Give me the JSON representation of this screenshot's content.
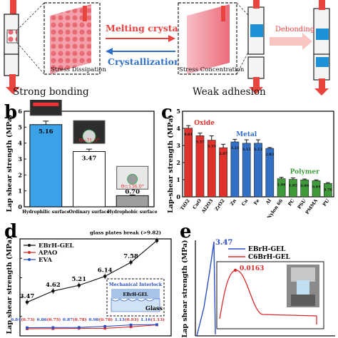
{
  "panel_a": {
    "arrow_top_label": "Melting crystal",
    "arrow_bottom_label": "Crystallization",
    "left_caption": "Stress Dissipation",
    "right_caption": "Stress Concentration",
    "right_arrow_label": "Debonding",
    "left_state": "Strong bonding",
    "right_state": "Weak adhesion",
    "colors": {
      "red_arrow": "#e8423f",
      "blue_arrow": "#2f6fc6",
      "cyan": "#1e90d8"
    }
  },
  "panel_b_letter": "b",
  "panel_c_letter": "c",
  "panel_d_letter": "d",
  "panel_e_letter": "e",
  "chart_data": [
    {
      "id": "b",
      "type": "bar",
      "ylabel": "Lap shear strength (MPa)",
      "ylim": [
        0,
        6
      ],
      "yticks": [
        "0",
        "1",
        "2",
        "3",
        "4",
        "5",
        "6"
      ],
      "categories": [
        "Hydrophilic surface",
        "Ordinary surface",
        "Hydrophobic surface"
      ],
      "values": [
        5.16,
        3.47,
        0.7
      ],
      "value_labels": [
        "5.16",
        "3.47",
        "0.70"
      ],
      "errors": [
        0.22,
        0.15,
        0.05
      ],
      "colors": [
        "#3aa2e8",
        "#ffffff",
        "#9e9e9e"
      ],
      "contact_angle_labels": [
        "Θ=71.5°",
        "Θ=136.0°"
      ]
    },
    {
      "id": "c",
      "type": "bar",
      "ylabel": "Lap-shear strength (MPa)",
      "ylim": [
        0,
        5
      ],
      "yticks": [
        "0",
        "1",
        "2",
        "3",
        "4",
        "5"
      ],
      "categories": [
        "TiO2",
        "CuO",
        "Al2O3",
        "ZrO2",
        "Zn",
        "Cu",
        "Fe",
        "Al",
        "Nylon 66",
        "PC",
        "PSU",
        "PMMA",
        "PU"
      ],
      "values": [
        4.01,
        3.57,
        3.31,
        2.87,
        3.21,
        3.13,
        3.13,
        2.83,
        1.06,
        1.02,
        0.99,
        0.94,
        0.78
      ],
      "value_labels": [
        "4.01",
        "3.57",
        "3.31",
        "2.87",
        "3.21",
        "3.13",
        "3.13",
        "2.83",
        "1.06",
        "1.02",
        "0.99",
        "0.94",
        "0.78"
      ],
      "errors": [
        0.15,
        0.15,
        0.25,
        0.2,
        0.15,
        0.2,
        0.2,
        0.05,
        0.08,
        0.08,
        0.05,
        0.05,
        0.05
      ],
      "colors": [
        "#e0312b",
        "#e0312b",
        "#e0312b",
        "#e0312b",
        "#3170c4",
        "#3170c4",
        "#3170c4",
        "#3170c4",
        "#3f9a3a",
        "#3f9a3a",
        "#3f9a3a",
        "#3f9a3a",
        "#3f9a3a"
      ],
      "group_labels": [
        {
          "text": "Oxide",
          "color": "#e0312b"
        },
        {
          "text": "Metal",
          "color": "#3170c4"
        },
        {
          "text": "Polymer",
          "color": "#3f9a3a"
        }
      ]
    },
    {
      "id": "d",
      "type": "line",
      "ylabel": "Lap shear strength (MPa)",
      "ylim": [
        0,
        10
      ],
      "yticks": [
        "0",
        "2",
        "4",
        "6",
        "8",
        "10"
      ],
      "x": [
        1,
        2,
        3,
        4,
        5,
        6
      ],
      "series": [
        {
          "name": "EBrH-GEL",
          "values": [
            3.47,
            4.62,
            5.21,
            6.14,
            7.58,
            9.82
          ],
          "color": "#111111",
          "labels": [
            "3.47",
            "4.62",
            "5.21",
            "6.14",
            "7.58",
            ""
          ]
        },
        {
          "name": "APAO",
          "values": [
            0.73,
            0.75,
            0.78,
            0.78,
            0.93,
            1.13
          ],
          "color": "#d62b2b",
          "labels": [
            "(0.73)",
            "(0.75)",
            "(0.78)",
            "(0.78)",
            "(0.93)",
            "(1.13)"
          ]
        },
        {
          "name": "EVA",
          "values": [
            0.84,
            0.86,
            0.87,
            0.98,
            1.13,
            1.16
          ],
          "color": "#2a4fc4",
          "labels": [
            "0.84",
            "0.86",
            "0.87",
            "0.98",
            "1.13",
            "1.16"
          ]
        }
      ],
      "annotation": "glass plates break (>9.82)",
      "inset_title": "Mechanical Interlock",
      "inset_layer": "EBrH-GEL",
      "inset_glass": "Glass"
    },
    {
      "id": "e",
      "type": "line",
      "ylabel": "Lap shear strength (MPa)",
      "series": [
        {
          "name": "EBrH-GEL",
          "color": "#2a4fc4",
          "peak_label": "3.47"
        },
        {
          "name": "C6BrH-GEL",
          "color": "#d62b2b",
          "peak_label": "0.0163"
        }
      ]
    }
  ]
}
